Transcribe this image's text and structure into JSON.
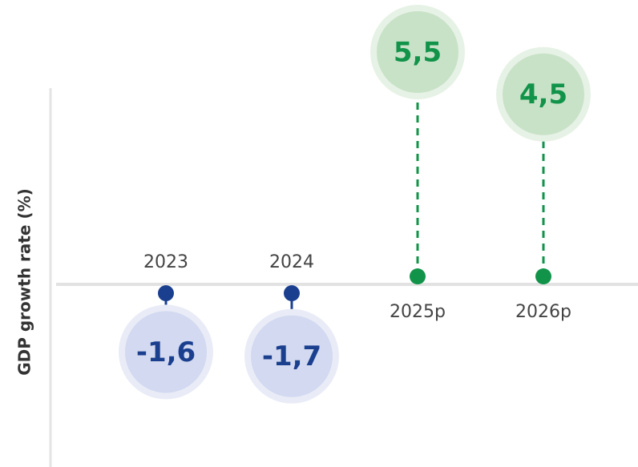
{
  "chart_data": {
    "type": "lollipop",
    "y_axis_label": "GDP growth rate (%)",
    "categories": [
      "2023",
      "2024",
      "2025p",
      "2026p"
    ],
    "values": [
      -1.6,
      -1.7,
      5.5,
      4.5
    ],
    "value_labels": [
      "-1,6",
      "-1,7",
      "5,5",
      "4,5"
    ],
    "negative_color": "#1b3f8f",
    "positive_color": "#12934a",
    "ylim": [
      -4,
      6.6
    ]
  }
}
